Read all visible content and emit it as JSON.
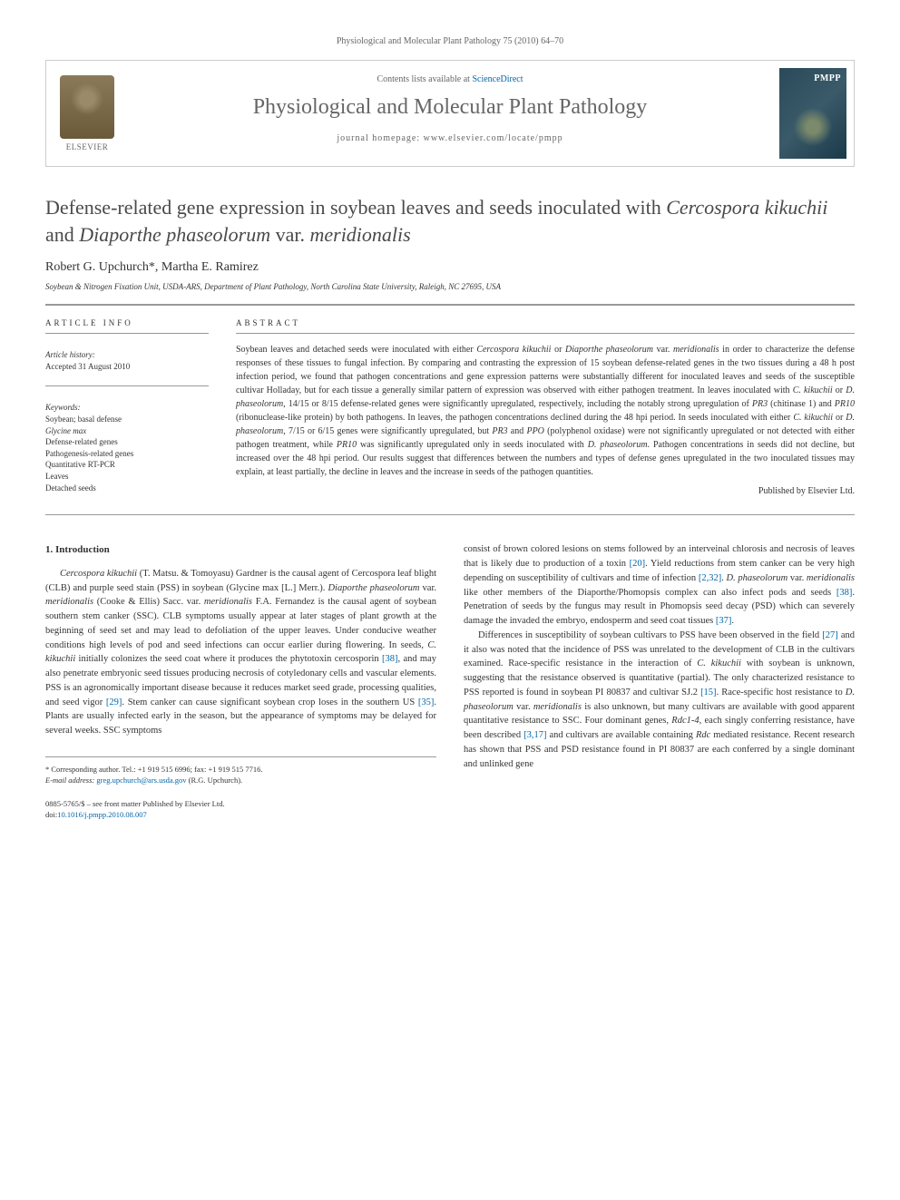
{
  "citation": "Physiological and Molecular Plant Pathology 75 (2010) 64–70",
  "header": {
    "contents_prefix": "Contents lists available at ",
    "contents_link": "ScienceDirect",
    "journal_name": "Physiological and Molecular Plant Pathology",
    "homepage_prefix": "journal homepage: ",
    "homepage_url": "www.elsevier.com/locate/pmpp",
    "elsevier_label": "ELSEVIER",
    "cover_label": "PMPP"
  },
  "title_parts": [
    {
      "text": "Defense-related gene expression in soybean leaves and seeds inoculated with ",
      "italic": false
    },
    {
      "text": "Cercospora kikuchii",
      "italic": true
    },
    {
      "text": " and ",
      "italic": false
    },
    {
      "text": "Diaporthe phaseolorum",
      "italic": true
    },
    {
      "text": " var. ",
      "italic": false
    },
    {
      "text": "meridionalis",
      "italic": true
    }
  ],
  "authors": "Robert G. Upchurch*, Martha E. Ramirez",
  "affiliation": "Soybean & Nitrogen Fixation Unit, USDA-ARS, Department of Plant Pathology, North Carolina State University, Raleigh, NC 27695, USA",
  "article_info": {
    "heading": "ARTICLE INFO",
    "history_label": "Article history:",
    "history_value": "Accepted 31 August 2010",
    "keywords_label": "Keywords:",
    "keywords": [
      {
        "text": "Soybean; basal defense",
        "italic": false
      },
      {
        "text": "Glycine max",
        "italic": true
      },
      {
        "text": "Defense-related genes",
        "italic": false
      },
      {
        "text": "Pathogenesis-related genes",
        "italic": false
      },
      {
        "text": "Quantitative RT-PCR",
        "italic": false
      },
      {
        "text": "Leaves",
        "italic": false
      },
      {
        "text": "Detached seeds",
        "italic": false
      }
    ]
  },
  "abstract": {
    "heading": "ABSTRACT",
    "text_parts": [
      {
        "text": "Soybean leaves and detached seeds were inoculated with either ",
        "italic": false
      },
      {
        "text": "Cercospora kikuchii",
        "italic": true
      },
      {
        "text": " or ",
        "italic": false
      },
      {
        "text": "Diaporthe phaseolorum",
        "italic": true
      },
      {
        "text": " var. ",
        "italic": false
      },
      {
        "text": "meridionalis",
        "italic": true
      },
      {
        "text": " in order to characterize the defense responses of these tissues to fungal infection. By comparing and contrasting the expression of 15 soybean defense-related genes in the two tissues during a 48 h post infection period, we found that pathogen concentrations and gene expression patterns were substantially different for inoculated leaves and seeds of the susceptible cultivar Holladay, but for each tissue a generally similar pattern of expression was observed with either pathogen treatment. In leaves inoculated with ",
        "italic": false
      },
      {
        "text": "C. kikuchii",
        "italic": true
      },
      {
        "text": " or ",
        "italic": false
      },
      {
        "text": "D. phaseolorum",
        "italic": true
      },
      {
        "text": ", 14/15 or 8/15 defense-related genes were significantly upregulated, respectively, including the notably strong upregulation of ",
        "italic": false
      },
      {
        "text": "PR3",
        "italic": true
      },
      {
        "text": " (chitinase 1) and ",
        "italic": false
      },
      {
        "text": "PR10",
        "italic": true
      },
      {
        "text": " (ribonuclease-like protein) by both pathogens. In leaves, the pathogen concentrations declined during the 48 hpi period. In seeds inoculated with either ",
        "italic": false
      },
      {
        "text": "C. kikuchii",
        "italic": true
      },
      {
        "text": " or ",
        "italic": false
      },
      {
        "text": "D. phaseolorum",
        "italic": true
      },
      {
        "text": ", 7/15 or 6/15 genes were significantly upregulated, but ",
        "italic": false
      },
      {
        "text": "PR3",
        "italic": true
      },
      {
        "text": " and ",
        "italic": false
      },
      {
        "text": "PPO",
        "italic": true
      },
      {
        "text": " (polyphenol oxidase) were not significantly upregulated or not detected with either pathogen treatment, while ",
        "italic": false
      },
      {
        "text": "PR10",
        "italic": true
      },
      {
        "text": " was significantly upregulated only in seeds inoculated with ",
        "italic": false
      },
      {
        "text": "D. phaseolorum",
        "italic": true
      },
      {
        "text": ". Pathogen concentrations in seeds did not decline, but increased over the 48 hpi period. Our results suggest that differences between the numbers and types of defense genes upregulated in the two inoculated tissues may explain, at least partially, the decline in leaves and the increase in seeds of the pathogen quantities.",
        "italic": false
      }
    ],
    "publisher": "Published by Elsevier Ltd."
  },
  "intro": {
    "heading": "1. Introduction",
    "col1_parts": [
      {
        "text": "Cercospora kikuchii",
        "italic": true
      },
      {
        "text": " (T. Matsu. & Tomoyasu) Gardner is the causal agent of Cercospora leaf blight (CLB) and purple seed stain (PSS) in soybean (Glycine max [L.] Merr.). ",
        "italic": false
      },
      {
        "text": "Diaporthe phaseolorum",
        "italic": true
      },
      {
        "text": " var. ",
        "italic": false
      },
      {
        "text": "meridionalis",
        "italic": true
      },
      {
        "text": " (Cooke & Ellis) Sacc. var. ",
        "italic": false
      },
      {
        "text": "meridionalis",
        "italic": true
      },
      {
        "text": " F.A. Fernandez is the causal agent of soybean southern stem canker (SSC). CLB symptoms usually appear at later stages of plant growth at the beginning of seed set and may lead to defoliation of the upper leaves. Under conducive weather conditions high levels of pod and seed infections can occur earlier during flowering. In seeds, ",
        "italic": false
      },
      {
        "text": "C. kikuchii",
        "italic": true
      },
      {
        "text": " initially colonizes the seed coat where it produces the phytotoxin cercosporin ",
        "italic": false
      },
      {
        "text": "[38]",
        "ref": true
      },
      {
        "text": ", and may also penetrate embryonic seed tissues producing necrosis of cotyledonary cells and vascular elements. PSS is an agronomically important disease because it reduces market seed grade, processing qualities, and seed vigor ",
        "italic": false
      },
      {
        "text": "[29]",
        "ref": true
      },
      {
        "text": ". Stem canker can cause significant soybean crop loses in the southern US ",
        "italic": false
      },
      {
        "text": "[35]",
        "ref": true
      },
      {
        "text": ". Plants are usually infected early in the season, but the appearance of symptoms may be delayed for several weeks. SSC symptoms",
        "italic": false
      }
    ],
    "col2_parts": [
      {
        "text": "consist of brown colored lesions on stems followed by an interveinal chlorosis and necrosis of leaves that is likely due to production of a toxin ",
        "italic": false
      },
      {
        "text": "[20]",
        "ref": true
      },
      {
        "text": ". Yield reductions from stem canker can be very high depending on susceptibility of cultivars and time of infection ",
        "italic": false
      },
      {
        "text": "[2,32]",
        "ref": true
      },
      {
        "text": ". ",
        "italic": false
      },
      {
        "text": "D. phaseolorum",
        "italic": true
      },
      {
        "text": " var. ",
        "italic": false
      },
      {
        "text": "meridionalis",
        "italic": true
      },
      {
        "text": " like other members of the Diaporthe/Phomopsis complex can also infect pods and seeds ",
        "italic": false
      },
      {
        "text": "[38]",
        "ref": true
      },
      {
        "text": ". Penetration of seeds by the fungus may result in Phomopsis seed decay (PSD) which can severely damage the invaded the embryo, endosperm and seed coat tissues ",
        "italic": false
      },
      {
        "text": "[37]",
        "ref": true
      },
      {
        "text": ".",
        "italic": false
      }
    ],
    "col2_p2_parts": [
      {
        "text": "Differences in susceptibility of soybean cultivars to PSS have been observed in the field ",
        "italic": false
      },
      {
        "text": "[27]",
        "ref": true
      },
      {
        "text": " and it also was noted that the incidence of PSS was unrelated to the development of CLB in the cultivars examined. Race-specific resistance in the interaction of ",
        "italic": false
      },
      {
        "text": "C. kikuchii",
        "italic": true
      },
      {
        "text": " with soybean is unknown, suggesting that the resistance observed is quantitative (partial). The only characterized resistance to PSS reported is found in soybean PI 80837 and cultivar SJ.2 ",
        "italic": false
      },
      {
        "text": "[15]",
        "ref": true
      },
      {
        "text": ". Race-specific host resistance to ",
        "italic": false
      },
      {
        "text": "D. phaseolorum",
        "italic": true
      },
      {
        "text": " var. ",
        "italic": false
      },
      {
        "text": "meridionalis",
        "italic": true
      },
      {
        "text": " is also unknown, but many cultivars are available with good apparent quantitative resistance to SSC. Four dominant genes, ",
        "italic": false
      },
      {
        "text": "Rdc1-4",
        "italic": true
      },
      {
        "text": ", each singly conferring resistance, have been described ",
        "italic": false
      },
      {
        "text": "[3,17]",
        "ref": true
      },
      {
        "text": " and cultivars are available containing ",
        "italic": false
      },
      {
        "text": "Rdc",
        "italic": true
      },
      {
        "text": " mediated resistance. Recent research has shown that PSS and PSD resistance found in PI 80837 are each conferred by a single dominant and unlinked gene",
        "italic": false
      }
    ]
  },
  "footnote": {
    "corresponding": "* Corresponding author. Tel.: +1 919 515 6996; fax: +1 919 515 7716.",
    "email_label": "E-mail address:",
    "email": "greg.upchurch@ars.usda.gov",
    "email_suffix": "(R.G. Upchurch)."
  },
  "copyright": {
    "line1": "0885-5765/$ – see front matter Published by Elsevier Ltd.",
    "doi_prefix": "doi:",
    "doi": "10.1016/j.pmpp.2010.08.007"
  },
  "colors": {
    "link": "#0066aa",
    "text": "#333333",
    "border": "#999999",
    "muted": "#666666"
  }
}
